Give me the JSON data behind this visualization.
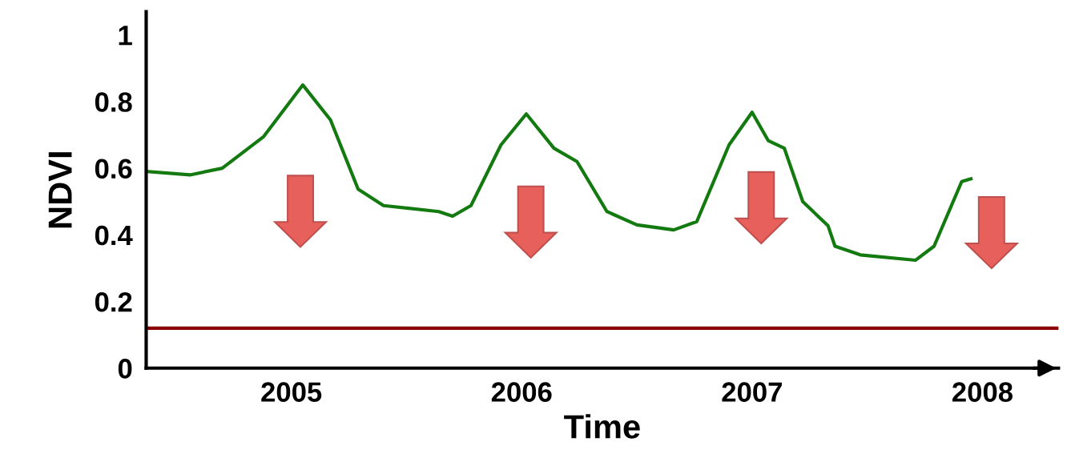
{
  "chart_data": {
    "type": "line",
    "xlabel": "Time",
    "ylabel": "NDVI",
    "x": [
      2004.38,
      2004.56,
      2004.7,
      2004.88,
      2005.05,
      2005.17,
      2005.29,
      2005.4,
      2005.64,
      2005.7,
      2005.78,
      2005.91,
      2006.02,
      2006.14,
      2006.24,
      2006.37,
      2006.5,
      2006.66,
      2006.76,
      2006.9,
      2007.0,
      2007.07,
      2007.14,
      2007.22,
      2007.33,
      2007.36,
      2007.47,
      2007.71,
      2007.79,
      2007.91,
      2007.95
    ],
    "series": [
      {
        "color": "#137a10",
        "values": [
          0.59,
          0.58,
          0.6,
          0.695,
          0.85,
          0.745,
          0.537,
          0.488,
          0.47,
          0.456,
          0.488,
          0.67,
          0.763,
          0.66,
          0.62,
          0.47,
          0.43,
          0.415,
          0.44,
          0.67,
          0.768,
          0.683,
          0.66,
          0.5,
          0.427,
          0.366,
          0.34,
          0.324,
          0.366,
          0.56,
          0.568
        ]
      }
    ],
    "ref_lines": [
      {
        "axis": "y",
        "value": 0.12,
        "color": "#8b0000",
        "line_style": "solid"
      }
    ],
    "xlim": [
      2004.37,
      2008.33
    ],
    "ylim": [
      0,
      1.07
    ],
    "xticks": [
      2005,
      2006,
      2007,
      2008
    ],
    "yticks": [
      0,
      0.2,
      0.4,
      0.6,
      0.8,
      1
    ],
    "grid": false,
    "legend": false,
    "marker": "none",
    "line_style": "solid"
  }
}
